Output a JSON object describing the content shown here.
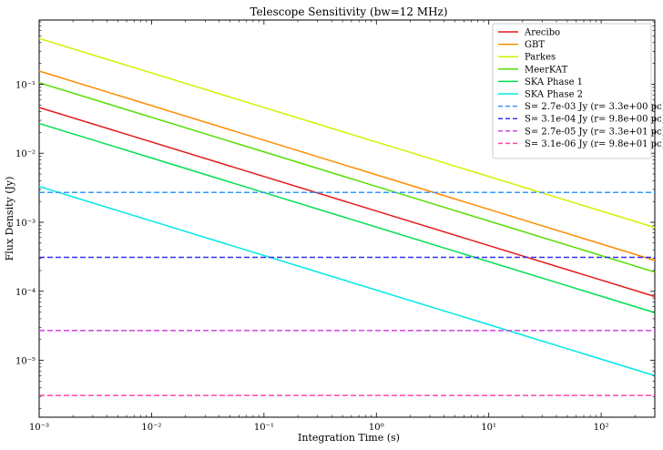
{
  "chart_data": {
    "type": "line",
    "title": "Telescope Sensitivity (bw=12 MHz)",
    "xlabel": "Integration Time (s)",
    "ylabel": "Flux Density (Jy)",
    "xscale": "log",
    "yscale": "log",
    "xlim": [
      0.001,
      300
    ],
    "ylim": [
      1.5e-06,
      0.85
    ],
    "grid": false,
    "legend_position": "top-right",
    "x_ticks": [
      {
        "value": 0.001,
        "label": "10⁻³"
      },
      {
        "value": 0.01,
        "label": "10⁻²"
      },
      {
        "value": 0.1,
        "label": "10⁻¹"
      },
      {
        "value": 1,
        "label": "10⁰"
      },
      {
        "value": 10,
        "label": "10¹"
      },
      {
        "value": 100,
        "label": "10²"
      }
    ],
    "y_ticks": [
      {
        "value": 1e-05,
        "label": "10⁻⁵"
      },
      {
        "value": 0.0001,
        "label": "10⁻⁴"
      },
      {
        "value": 0.001,
        "label": "10⁻³"
      },
      {
        "value": 0.01,
        "label": "10⁻²"
      },
      {
        "value": 0.1,
        "label": "10⁻¹"
      }
    ],
    "series": [
      {
        "name": "Arecibo",
        "style": "solid",
        "color": "#e41a1a",
        "x": [
          0.001,
          300
        ],
        "values": [
          0.046,
          8.4e-05
        ]
      },
      {
        "name": "GBT",
        "style": "solid",
        "color": "#ff8c00",
        "x": [
          0.001,
          300
        ],
        "values": [
          0.155,
          0.00028
        ]
      },
      {
        "name": "Parkes",
        "style": "solid",
        "color": "#d4f000",
        "x": [
          0.001,
          300
        ],
        "values": [
          0.46,
          0.00084
        ]
      },
      {
        "name": "MeerKAT",
        "style": "solid",
        "color": "#55dd00",
        "x": [
          0.001,
          300
        ],
        "values": [
          0.105,
          0.00019
        ]
      },
      {
        "name": "SKA Phase 1",
        "style": "solid",
        "color": "#00e050",
        "x": [
          0.001,
          300
        ],
        "values": [
          0.027,
          4.9e-05
        ]
      },
      {
        "name": "SKA Phase 2",
        "style": "solid",
        "color": "#00e8e8",
        "x": [
          0.001,
          300
        ],
        "values": [
          0.0033,
          6e-06
        ]
      },
      {
        "name": "S= 2.7e-03 Jy (r= 3.3e+00 pc)",
        "style": "dashed",
        "color": "#3399ff",
        "x": [
          0.001,
          300
        ],
        "values": [
          0.0027,
          0.0027
        ]
      },
      {
        "name": "S= 3.1e-04 Jy (r= 9.8e+00 pc)",
        "style": "dashed",
        "color": "#3333ee",
        "x": [
          0.001,
          300
        ],
        "values": [
          0.00031,
          0.00031
        ]
      },
      {
        "name": "S= 2.7e-05 Jy (r= 3.3e+01 pc)",
        "style": "dashed",
        "color": "#cc44dd",
        "x": [
          0.001,
          300
        ],
        "values": [
          2.7e-05,
          2.7e-05
        ]
      },
      {
        "name": "S= 3.1e-06 Jy (r= 9.8e+01 pc)",
        "style": "dashed",
        "color": "#ff44aa",
        "x": [
          0.001,
          300
        ],
        "values": [
          3.1e-06,
          3.1e-06
        ]
      }
    ]
  }
}
